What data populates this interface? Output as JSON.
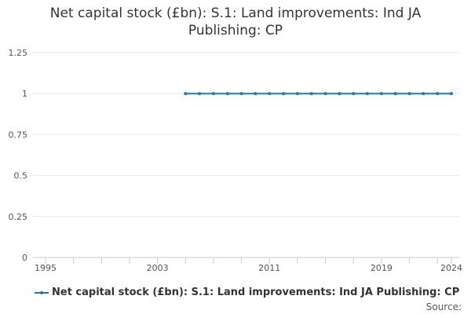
{
  "chart_data": {
    "type": "line",
    "title_lines": [
      "Net capital stock (£bn): S.1: Land improvements: Ind JA",
      "Publishing: CP"
    ],
    "xlabel": "",
    "ylabel": "",
    "xlim": [
      1995,
      2024
    ],
    "ylim": [
      0,
      1.25
    ],
    "x_ticks": [
      1995,
      2003,
      2011,
      2019,
      2024
    ],
    "x_minor_ticks": [
      1995,
      1997,
      1999,
      2001,
      2003,
      2005,
      2007,
      2009,
      2011,
      2013,
      2015,
      2017,
      2019,
      2021,
      2023,
      2024
    ],
    "y_ticks": [
      0,
      0.25,
      0.5,
      0.75,
      1,
      1.25
    ],
    "y_tick_labels": [
      "0",
      "0.25",
      "0.5",
      "0.75",
      "1",
      "1.25"
    ],
    "x_tick_labels": [
      "1995",
      "2003",
      "2011",
      "2019",
      "2024"
    ],
    "grid": true,
    "legend_position": "bottom",
    "series": [
      {
        "name": "Net capital stock (£bn): S.1: Land improvements: Ind JA Publishing: CP",
        "color": "#1f77b4",
        "x": [
          2005,
          2006,
          2007,
          2008,
          2009,
          2010,
          2011,
          2012,
          2013,
          2014,
          2015,
          2016,
          2017,
          2018,
          2019,
          2020,
          2021,
          2022,
          2023,
          2024
        ],
        "y": [
          1,
          1,
          1,
          1,
          1,
          1,
          1,
          1,
          1,
          1,
          1,
          1,
          1,
          1,
          1,
          1,
          1,
          1,
          1,
          1
        ]
      }
    ]
  },
  "legend": {
    "label": "Net capital stock (£bn): S.1: Land improvements: Ind JA Publishing: CP"
  },
  "footer": {
    "source_label": "Source:"
  }
}
